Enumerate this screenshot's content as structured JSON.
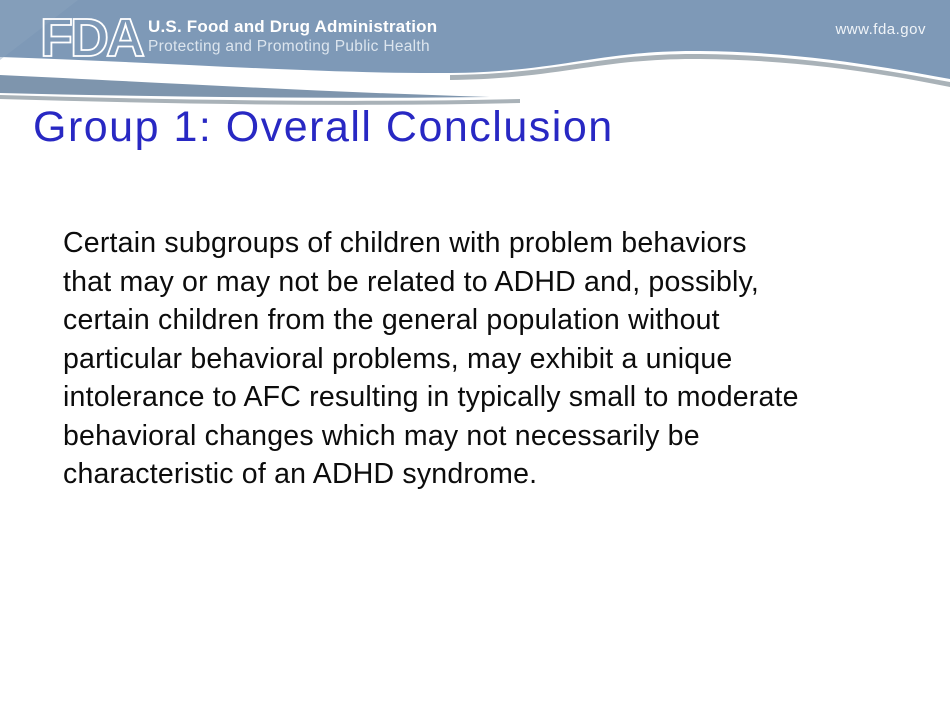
{
  "slide": {
    "header": {
      "logo_text": "FDA",
      "agency_name": "U.S. Food and Drug Administration",
      "tagline": "Protecting and Promoting Public Health",
      "website": "www.fda.gov",
      "colors": {
        "band": "#7E99B7",
        "band_highlight": "#8CA4BF",
        "swoosh": "#7E95AD",
        "shadow": "#A9B2B8",
        "text": "#FFFFFF"
      }
    },
    "title": {
      "text": "Group 1: Overall Conclusion",
      "color": "#2828C3"
    },
    "body": {
      "lines": [
        "Certain subgroups of children with problem behaviors",
        "that may or may not be related to ADHD and, possibly,",
        "certain children from the general population without",
        "particular behavioral problems, may exhibit a unique",
        "intolerance to AFC resulting in typically small to moderate",
        "behavioral changes which may not necessarily be",
        "characteristic of an ADHD syndrome."
      ]
    },
    "background": "#FFFFFF"
  }
}
